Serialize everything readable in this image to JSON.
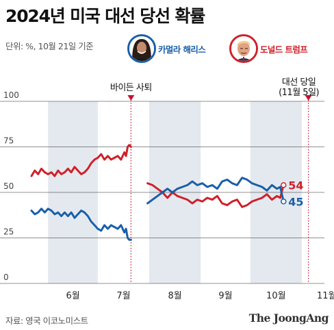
{
  "header": {
    "title": "2024년 미국 대선 당선 확률",
    "unit": "단위: %, 10월 21일 기준"
  },
  "legend": [
    {
      "name": "카멀라 해리스",
      "color": "#1a5fa8",
      "icon": "harris-portrait"
    },
    {
      "name": "도널드 트럼프",
      "color": "#d0202a",
      "icon": "trump-portrait"
    }
  ],
  "footer": {
    "source": "자료: 영국 이코노미스트",
    "brand": "The JoongAng"
  },
  "chart_data": {
    "type": "line",
    "ylim": [
      0,
      100
    ],
    "yticks": [
      "0",
      "25",
      "50",
      "75",
      "100"
    ],
    "xlim": [
      "2024-05-22",
      "2024-11-13"
    ],
    "months": [
      {
        "label": "6월",
        "shaded": true
      },
      {
        "label": "7월",
        "shaded": false
      },
      {
        "label": "8월",
        "shaded": true
      },
      {
        "label": "9월",
        "shaded": false
      },
      {
        "label": "10월",
        "shaded": true
      },
      {
        "label": "11월",
        "shaded": false
      }
    ],
    "events": [
      {
        "date": "2024-07-21",
        "label": "바이든 사퇴",
        "sublabel": "",
        "color": "#c8102e"
      },
      {
        "date": "2024-11-05",
        "label": "대선 당일",
        "sublabel": "(11월 5일)",
        "color": "#c8102e"
      }
    ],
    "series": [
      {
        "name": "Trump",
        "color": "#d0202a",
        "end_label": "54",
        "segments": [
          [
            [
              "2024-05-22",
              59
            ],
            [
              "2024-05-24",
              62
            ],
            [
              "2024-05-26",
              60
            ],
            [
              "2024-05-28",
              63
            ],
            [
              "2024-05-30",
              61
            ],
            [
              "2024-06-01",
              60
            ],
            [
              "2024-06-03",
              61
            ],
            [
              "2024-06-05",
              59
            ],
            [
              "2024-06-07",
              62
            ],
            [
              "2024-06-09",
              60
            ],
            [
              "2024-06-11",
              61
            ],
            [
              "2024-06-13",
              63
            ],
            [
              "2024-06-15",
              61
            ],
            [
              "2024-06-17",
              64
            ],
            [
              "2024-06-19",
              62
            ],
            [
              "2024-06-21",
              60
            ],
            [
              "2024-06-23",
              61
            ],
            [
              "2024-06-25",
              63
            ],
            [
              "2024-06-27",
              66
            ],
            [
              "2024-06-29",
              68
            ],
            [
              "2024-07-01",
              69
            ],
            [
              "2024-07-03",
              71
            ],
            [
              "2024-07-05",
              68
            ],
            [
              "2024-07-07",
              70
            ],
            [
              "2024-07-09",
              68
            ],
            [
              "2024-07-11",
              69
            ],
            [
              "2024-07-13",
              70
            ],
            [
              "2024-07-15",
              68
            ],
            [
              "2024-07-17",
              72
            ],
            [
              "2024-07-18",
              70
            ],
            [
              "2024-07-19",
              75
            ],
            [
              "2024-07-20",
              76
            ],
            [
              "2024-07-21",
              75
            ]
          ],
          [
            [
              "2024-07-31",
              55
            ],
            [
              "2024-08-03",
              54
            ],
            [
              "2024-08-06",
              52
            ],
            [
              "2024-08-09",
              50
            ],
            [
              "2024-08-12",
              47
            ],
            [
              "2024-08-15",
              50
            ],
            [
              "2024-08-18",
              48
            ],
            [
              "2024-08-21",
              47
            ],
            [
              "2024-08-24",
              46
            ],
            [
              "2024-08-27",
              44
            ],
            [
              "2024-08-30",
              46
            ],
            [
              "2024-09-02",
              45
            ],
            [
              "2024-09-05",
              47
            ],
            [
              "2024-09-08",
              46
            ],
            [
              "2024-09-11",
              48
            ],
            [
              "2024-09-14",
              44
            ],
            [
              "2024-09-17",
              43
            ],
            [
              "2024-09-20",
              45
            ],
            [
              "2024-09-23",
              46
            ],
            [
              "2024-09-26",
              42
            ],
            [
              "2024-09-29",
              43
            ],
            [
              "2024-10-02",
              45
            ],
            [
              "2024-10-05",
              46
            ],
            [
              "2024-10-08",
              47
            ],
            [
              "2024-10-11",
              49
            ],
            [
              "2024-10-14",
              46
            ],
            [
              "2024-10-17",
              48
            ],
            [
              "2024-10-19",
              47
            ],
            [
              "2024-10-21",
              54
            ]
          ]
        ]
      },
      {
        "name": "Harris",
        "color": "#1a5fa8",
        "end_label": "45",
        "segments": [
          [
            [
              "2024-05-22",
              40
            ],
            [
              "2024-05-24",
              38
            ],
            [
              "2024-05-26",
              39
            ],
            [
              "2024-05-28",
              41
            ],
            [
              "2024-05-30",
              39
            ],
            [
              "2024-06-01",
              41
            ],
            [
              "2024-06-03",
              40
            ],
            [
              "2024-06-05",
              38
            ],
            [
              "2024-06-07",
              39
            ],
            [
              "2024-06-09",
              37
            ],
            [
              "2024-06-11",
              39
            ],
            [
              "2024-06-13",
              37
            ],
            [
              "2024-06-15",
              39
            ],
            [
              "2024-06-17",
              36
            ],
            [
              "2024-06-19",
              38
            ],
            [
              "2024-06-21",
              40
            ],
            [
              "2024-06-23",
              39
            ],
            [
              "2024-06-25",
              37
            ],
            [
              "2024-06-27",
              34
            ],
            [
              "2024-06-29",
              32
            ],
            [
              "2024-07-01",
              30
            ],
            [
              "2024-07-03",
              29
            ],
            [
              "2024-07-05",
              32
            ],
            [
              "2024-07-07",
              30
            ],
            [
              "2024-07-09",
              32
            ],
            [
              "2024-07-11",
              31
            ],
            [
              "2024-07-13",
              30
            ],
            [
              "2024-07-15",
              32
            ],
            [
              "2024-07-17",
              28
            ],
            [
              "2024-07-18",
              30
            ],
            [
              "2024-07-19",
              25
            ],
            [
              "2024-07-20",
              24
            ],
            [
              "2024-07-21",
              24
            ]
          ],
          [
            [
              "2024-07-31",
              44
            ],
            [
              "2024-08-03",
              46
            ],
            [
              "2024-08-06",
              48
            ],
            [
              "2024-08-09",
              50
            ],
            [
              "2024-08-12",
              52
            ],
            [
              "2024-08-15",
              50
            ],
            [
              "2024-08-18",
              52
            ],
            [
              "2024-08-21",
              53
            ],
            [
              "2024-08-24",
              54
            ],
            [
              "2024-08-27",
              56
            ],
            [
              "2024-08-30",
              54
            ],
            [
              "2024-09-02",
              55
            ],
            [
              "2024-09-05",
              53
            ],
            [
              "2024-09-08",
              54
            ],
            [
              "2024-09-11",
              52
            ],
            [
              "2024-09-14",
              56
            ],
            [
              "2024-09-17",
              57
            ],
            [
              "2024-09-20",
              55
            ],
            [
              "2024-09-23",
              54
            ],
            [
              "2024-09-26",
              58
            ],
            [
              "2024-09-29",
              57
            ],
            [
              "2024-10-02",
              55
            ],
            [
              "2024-10-05",
              54
            ],
            [
              "2024-10-08",
              53
            ],
            [
              "2024-10-11",
              51
            ],
            [
              "2024-10-14",
              54
            ],
            [
              "2024-10-17",
              52
            ],
            [
              "2024-10-19",
              53
            ],
            [
              "2024-10-21",
              45
            ]
          ]
        ]
      }
    ]
  }
}
